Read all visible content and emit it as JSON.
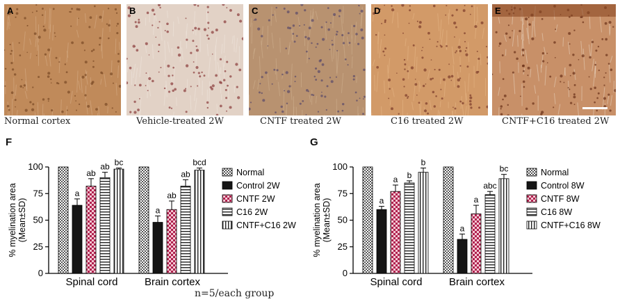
{
  "panels": [
    {
      "letter": "A",
      "caption": "Normal cortex",
      "base": "#c08a5a",
      "dark": "#7a4a25",
      "light": "#d8b08a"
    },
    {
      "letter": "B",
      "caption": "Vehicle-treated 2W",
      "base": "#e2d2c6",
      "dark": "#8a3a3a",
      "light": "#f0e6de"
    },
    {
      "letter": "C",
      "caption": "CNTF treated 2W",
      "base": "#b89270",
      "dark": "#5a4a6a",
      "light": "#d0b290"
    },
    {
      "letter": "D",
      "caption": "C16 treated 2W",
      "base": "#d29a68",
      "dark": "#7a3a2a",
      "light": "#e6b888"
    },
    {
      "letter": "E",
      "caption": "CNTF+C16 treated 2W",
      "base": "#c89068",
      "dark": "#6a3018",
      "light": "#e8d4c0"
    }
  ],
  "note": "n=5/each group",
  "chart_data": [
    {
      "letter": "F",
      "type": "bar",
      "ylabel": "% myelination area\n(Mean±SD)",
      "ylim": [
        0,
        100
      ],
      "yticks": [
        0,
        25,
        50,
        75,
        100
      ],
      "categories": [
        "Spinal cord",
        "Brain cortex"
      ],
      "series": [
        {
          "name": "Normal",
          "values": [
            100,
            100
          ],
          "err": [
            0,
            0
          ],
          "sig": [
            "",
            ""
          ]
        },
        {
          "name": "Control 2W",
          "values": [
            64,
            48
          ],
          "err": [
            6,
            6
          ],
          "sig": [
            "a",
            "a"
          ]
        },
        {
          "name": "CNTF 2W",
          "values": [
            82,
            60
          ],
          "err": [
            7,
            8
          ],
          "sig": [
            "ab",
            "ab"
          ]
        },
        {
          "name": "C16 2W",
          "values": [
            90,
            82
          ],
          "err": [
            5,
            6
          ],
          "sig": [
            "ab",
            "ab"
          ]
        },
        {
          "name": "CNTF+C16 2W",
          "values": [
            98,
            97
          ],
          "err": [
            1,
            2
          ],
          "sig": [
            "bc",
            "bcd"
          ]
        }
      ]
    },
    {
      "letter": "G",
      "type": "bar",
      "ylabel": "% myelination area\n(Mean±SD)",
      "ylim": [
        0,
        100
      ],
      "yticks": [
        0,
        25,
        50,
        75,
        100
      ],
      "categories": [
        "Spinal cord",
        "Brain cortex"
      ],
      "series": [
        {
          "name": "Normal",
          "values": [
            100,
            100
          ],
          "err": [
            0,
            0
          ],
          "sig": [
            "",
            ""
          ]
        },
        {
          "name": "Control 8W",
          "values": [
            60,
            32
          ],
          "err": [
            3,
            5
          ],
          "sig": [
            "a",
            "a"
          ]
        },
        {
          "name": "CNTF 8W",
          "values": [
            77,
            56
          ],
          "err": [
            6,
            8
          ],
          "sig": [
            "a",
            "a"
          ]
        },
        {
          "name": "C16 8W",
          "values": [
            85,
            74
          ],
          "err": [
            2,
            3
          ],
          "sig": [
            "b",
            "abc"
          ]
        },
        {
          "name": "CNTF+C16 8W",
          "values": [
            95,
            89
          ],
          "err": [
            4,
            4
          ],
          "sig": [
            "b",
            "bc"
          ]
        }
      ]
    }
  ]
}
